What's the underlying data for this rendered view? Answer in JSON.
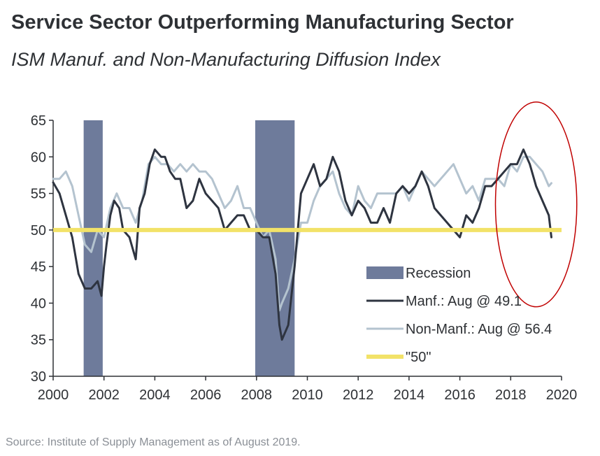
{
  "header": {
    "title": "Service Sector Outperforming Manufacturing Sector",
    "subtitle": "ISM Manuf. and Non-Manufacturing Diffusion Index"
  },
  "footer": {
    "source": "Source: Institute of Supply Management as of August 2019."
  },
  "colors": {
    "manf": "#2e3440",
    "nonmanf": "#b4c3cf",
    "fifty": "#f2e268",
    "recession": "#6e7b9b",
    "highlight_circle": "#c00000",
    "axis": "#2e3135"
  },
  "chart_data": {
    "type": "line",
    "xlim": [
      2000,
      2020
    ],
    "ylim": [
      30,
      65
    ],
    "x_ticks": [
      "2000",
      "2002",
      "2004",
      "2006",
      "2008",
      "2010",
      "2012",
      "2014",
      "2016",
      "2018",
      "2020"
    ],
    "y_ticks": [
      "30",
      "35",
      "40",
      "45",
      "50",
      "55",
      "60",
      "65"
    ],
    "legend_position": "lower-right",
    "recessions": [
      [
        2001.2,
        2001.95
      ],
      [
        2007.95,
        2009.5
      ]
    ],
    "reference_line": {
      "name": "\"50\"",
      "value": 50
    },
    "highlight": {
      "shape": "ellipse",
      "x_center": 2019.0,
      "y_center": 53.5,
      "x_radius": 1.6,
      "y_radius": 14
    },
    "legend": [
      {
        "key": "recession",
        "label": "Recession"
      },
      {
        "key": "manf",
        "label": "Manf.: Aug @ 49.1"
      },
      {
        "key": "nonmanf",
        "label": "Non-Manf.: Aug @ 56.4"
      },
      {
        "key": "fifty",
        "label": "\"50\""
      }
    ],
    "series": [
      {
        "key": "manf",
        "name": "Manf.: Aug @ 49.1",
        "x": [
          2000.0,
          2000.25,
          2000.5,
          2000.75,
          2001.0,
          2001.25,
          2001.5,
          2001.75,
          2001.9,
          2002.0,
          2002.1,
          2002.25,
          2002.4,
          2002.6,
          2002.75,
          2003.0,
          2003.25,
          2003.4,
          2003.6,
          2003.8,
          2004.0,
          2004.25,
          2004.4,
          2004.6,
          2004.8,
          2005.0,
          2005.25,
          2005.5,
          2005.75,
          2006.0,
          2006.25,
          2006.5,
          2006.75,
          2007.0,
          2007.25,
          2007.5,
          2007.75,
          2008.0,
          2008.25,
          2008.5,
          2008.75,
          2008.9,
          2009.0,
          2009.25,
          2009.5,
          2009.75,
          2010.0,
          2010.25,
          2010.5,
          2010.75,
          2011.0,
          2011.25,
          2011.5,
          2011.75,
          2012.0,
          2012.25,
          2012.5,
          2012.75,
          2013.0,
          2013.25,
          2013.5,
          2013.75,
          2014.0,
          2014.25,
          2014.5,
          2014.75,
          2015.0,
          2015.25,
          2015.5,
          2015.75,
          2016.0,
          2016.25,
          2016.5,
          2016.75,
          2017.0,
          2017.25,
          2017.5,
          2017.75,
          2018.0,
          2018.25,
          2018.5,
          2018.75,
          2019.0,
          2019.25,
          2019.5,
          2019.6
        ],
        "y": [
          56.5,
          55,
          52,
          49,
          44,
          42,
          42,
          43,
          41,
          45,
          48,
          52,
          54,
          53,
          50,
          49,
          46,
          53,
          55,
          59,
          61,
          60,
          60,
          58,
          57,
          57,
          53,
          54,
          57,
          55,
          54,
          53,
          50,
          51,
          52,
          52,
          50,
          50,
          49,
          49,
          44,
          37,
          35,
          37,
          45,
          55,
          57,
          59,
          56,
          57,
          60,
          58,
          54,
          52,
          54,
          53,
          51,
          51,
          53,
          51,
          55,
          56,
          55,
          56,
          58,
          56,
          53,
          52,
          51,
          50,
          49,
          52,
          51,
          53,
          56,
          56,
          57,
          58,
          59,
          59,
          61,
          59,
          56,
          54,
          52,
          49
        ]
      },
      {
        "key": "nonmanf",
        "name": "Non-Manf.: Aug @ 56.4",
        "x": [
          2000.0,
          2000.25,
          2000.5,
          2000.75,
          2001.0,
          2001.25,
          2001.5,
          2001.75,
          2002.0,
          2002.25,
          2002.5,
          2002.75,
          2003.0,
          2003.25,
          2003.5,
          2003.75,
          2004.0,
          2004.25,
          2004.5,
          2004.75,
          2005.0,
          2005.25,
          2005.5,
          2005.75,
          2006.0,
          2006.25,
          2006.5,
          2006.75,
          2007.0,
          2007.25,
          2007.5,
          2007.75,
          2008.0,
          2008.25,
          2008.5,
          2008.75,
          2008.9,
          2009.0,
          2009.25,
          2009.5,
          2009.75,
          2010.0,
          2010.25,
          2010.5,
          2010.75,
          2011.0,
          2011.25,
          2011.5,
          2011.75,
          2012.0,
          2012.25,
          2012.5,
          2012.75,
          2013.0,
          2013.25,
          2013.5,
          2013.75,
          2014.0,
          2014.25,
          2014.5,
          2014.75,
          2015.0,
          2015.25,
          2015.5,
          2015.75,
          2016.0,
          2016.25,
          2016.5,
          2016.75,
          2017.0,
          2017.25,
          2017.5,
          2017.75,
          2018.0,
          2018.25,
          2018.5,
          2018.75,
          2019.0,
          2019.25,
          2019.5,
          2019.6
        ],
        "y": [
          57,
          57,
          58,
          56,
          52,
          48,
          47,
          50,
          49,
          53,
          55,
          53,
          53,
          51,
          54,
          59,
          60,
          59,
          59,
          58,
          59,
          58,
          59,
          58,
          58,
          57,
          55,
          53,
          54,
          56,
          53,
          53,
          51,
          49,
          50,
          46,
          39,
          40,
          42,
          46,
          51,
          51,
          54,
          56,
          57,
          58,
          55,
          53,
          52,
          56,
          54,
          53,
          55,
          55,
          55,
          55,
          56,
          54,
          56,
          58,
          57,
          56,
          57,
          58,
          59,
          57,
          55,
          56,
          54,
          57,
          57,
          57,
          56,
          59,
          58,
          60,
          60,
          59,
          58,
          56,
          56.4
        ]
      }
    ]
  }
}
